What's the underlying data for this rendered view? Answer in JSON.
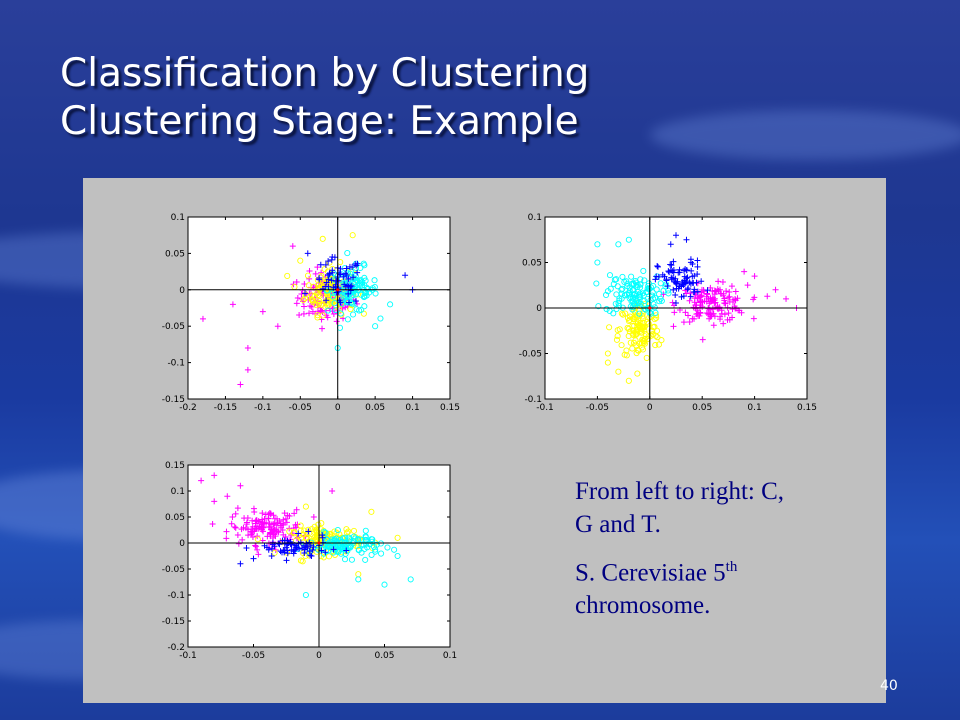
{
  "slide": {
    "title_line1": "Classification by Clustering",
    "title_line2": "Clustering Stage: Example",
    "caption_line1": "From left to right: C, G and T.",
    "caption_line2_text": "S. Cerevisiae 5",
    "caption_line2_sup": "th",
    "caption_line2_end": "chromosome.",
    "page_number": "40"
  },
  "colors": {
    "magenta": "#ff00ff",
    "yellow": "#ffff00",
    "cyan": "#00ffff",
    "blue": "#0000ff",
    "red": "#ff0000",
    "panel": "#c0c0c0",
    "caption": "#000080"
  },
  "chart_data": [
    {
      "type": "scatter",
      "xlim": [
        -0.2,
        0.15
      ],
      "ylim": [
        -0.15,
        0.1
      ],
      "xticks": [
        "-0.2",
        "-0.15",
        "-0.1",
        "-0.05",
        "0",
        "0.05",
        "0.1",
        "0.15"
      ],
      "yticks": [
        "0.1",
        "0.05",
        "0",
        "-0.05",
        "-0.1",
        "-0.15"
      ],
      "series": [
        {
          "marker": "plus",
          "color": "magenta",
          "center": [
            -0.015,
            -0.01
          ],
          "spread": [
            0.035,
            0.03
          ],
          "count": 140,
          "outliers": [
            [
              -0.18,
              -0.04
            ],
            [
              -0.14,
              -0.02
            ],
            [
              -0.12,
              -0.08
            ],
            [
              -0.1,
              -0.03
            ],
            [
              -0.13,
              -0.13
            ],
            [
              -0.12,
              -0.11
            ],
            [
              -0.08,
              -0.05
            ],
            [
              -0.06,
              0.06
            ]
          ]
        },
        {
          "marker": "circle",
          "color": "yellow",
          "center": [
            -0.01,
            0.0
          ],
          "spread": [
            0.03,
            0.03
          ],
          "count": 120,
          "outliers": [
            [
              -0.02,
              0.07
            ],
            [
              0.02,
              0.075
            ],
            [
              -0.05,
              0.04
            ]
          ]
        },
        {
          "marker": "circle",
          "color": "cyan",
          "center": [
            0.02,
            0.0
          ],
          "spread": [
            0.03,
            0.028
          ],
          "count": 110,
          "outliers": [
            [
              0.07,
              -0.02
            ],
            [
              0.05,
              -0.05
            ],
            [
              0.0,
              -0.08
            ]
          ]
        },
        {
          "marker": "plus",
          "color": "blue",
          "center": [
            0.0,
            0.01
          ],
          "spread": [
            0.03,
            0.03
          ],
          "count": 60,
          "outliers": [
            [
              0.1,
              -0.0
            ],
            [
              0.09,
              0.02
            ],
            [
              -0.04,
              0.05
            ]
          ]
        }
      ]
    },
    {
      "type": "scatter",
      "xlim": [
        -0.1,
        0.15
      ],
      "ylim": [
        -0.1,
        0.1
      ],
      "xticks": [
        "-0.1",
        "-0.05",
        "0",
        "0.05",
        "0.1",
        "0.15"
      ],
      "yticks": [
        "0.1",
        "0.05",
        "0",
        "-0.05",
        "-0.1"
      ],
      "series": [
        {
          "marker": "plus",
          "color": "magenta",
          "center": [
            0.06,
            0.005
          ],
          "spread": [
            0.03,
            0.018
          ],
          "count": 150,
          "outliers": [
            [
              0.13,
              0.01
            ],
            [
              0.12,
              0.02
            ],
            [
              0.14,
              0.0
            ],
            [
              0.09,
              0.04
            ],
            [
              0.1,
              0.035
            ]
          ]
        },
        {
          "marker": "circle",
          "color": "yellow",
          "center": [
            -0.01,
            -0.025
          ],
          "spread": [
            0.018,
            0.03
          ],
          "count": 120,
          "outliers": [
            [
              -0.04,
              -0.05
            ],
            [
              -0.03,
              -0.07
            ],
            [
              -0.02,
              -0.08
            ],
            [
              -0.04,
              -0.06
            ]
          ]
        },
        {
          "marker": "circle",
          "color": "cyan",
          "center": [
            -0.015,
            0.015
          ],
          "spread": [
            0.025,
            0.02
          ],
          "count": 120,
          "outliers": [
            [
              -0.05,
              0.07
            ],
            [
              -0.02,
              0.075
            ],
            [
              -0.03,
              0.07
            ],
            [
              -0.05,
              0.05
            ]
          ]
        },
        {
          "marker": "plus",
          "color": "blue",
          "center": [
            0.03,
            0.03
          ],
          "spread": [
            0.02,
            0.02
          ],
          "count": 80,
          "outliers": [
            [
              0.035,
              0.075
            ],
            [
              0.025,
              0.08
            ],
            [
              0.02,
              0.07
            ]
          ]
        }
      ]
    },
    {
      "type": "scatter",
      "xlim": [
        -0.1,
        0.1
      ],
      "ylim": [
        -0.2,
        0.15
      ],
      "xticks": [
        "-0.1",
        "-0.05",
        "0",
        "0.05",
        "0.1"
      ],
      "yticks": [
        "0.15",
        "0.1",
        "0.05",
        "0",
        "-0.05",
        "-0.1",
        "-0.15",
        "-0.2"
      ],
      "series": [
        {
          "marker": "plus",
          "color": "magenta",
          "center": [
            -0.04,
            0.03
          ],
          "spread": [
            0.025,
            0.03
          ],
          "count": 140,
          "outliers": [
            [
              -0.09,
              0.12
            ],
            [
              -0.08,
              0.13
            ],
            [
              -0.07,
              0.09
            ],
            [
              -0.06,
              0.11
            ],
            [
              -0.08,
              0.08
            ],
            [
              0.01,
              0.1
            ]
          ]
        },
        {
          "marker": "circle",
          "color": "yellow",
          "center": [
            0.005,
            0.005
          ],
          "spread": [
            0.025,
            0.025
          ],
          "count": 130,
          "outliers": [
            [
              0.04,
              0.06
            ],
            [
              0.06,
              0.01
            ],
            [
              0.03,
              -0.06
            ],
            [
              -0.01,
              0.07
            ]
          ]
        },
        {
          "marker": "circle",
          "color": "cyan",
          "center": [
            0.02,
            -0.005
          ],
          "spread": [
            0.025,
            0.02
          ],
          "count": 110,
          "outliers": [
            [
              0.05,
              -0.08
            ],
            [
              0.03,
              -0.07
            ],
            [
              0.07,
              -0.07
            ],
            [
              -0.01,
              -0.1
            ],
            [
              0.06,
              -0.025
            ]
          ]
        },
        {
          "marker": "plus",
          "color": "blue",
          "center": [
            -0.02,
            -0.01
          ],
          "spread": [
            0.025,
            0.02
          ],
          "count": 70,
          "outliers": [
            [
              -0.06,
              -0.04
            ],
            [
              -0.05,
              -0.03
            ]
          ]
        }
      ]
    }
  ]
}
